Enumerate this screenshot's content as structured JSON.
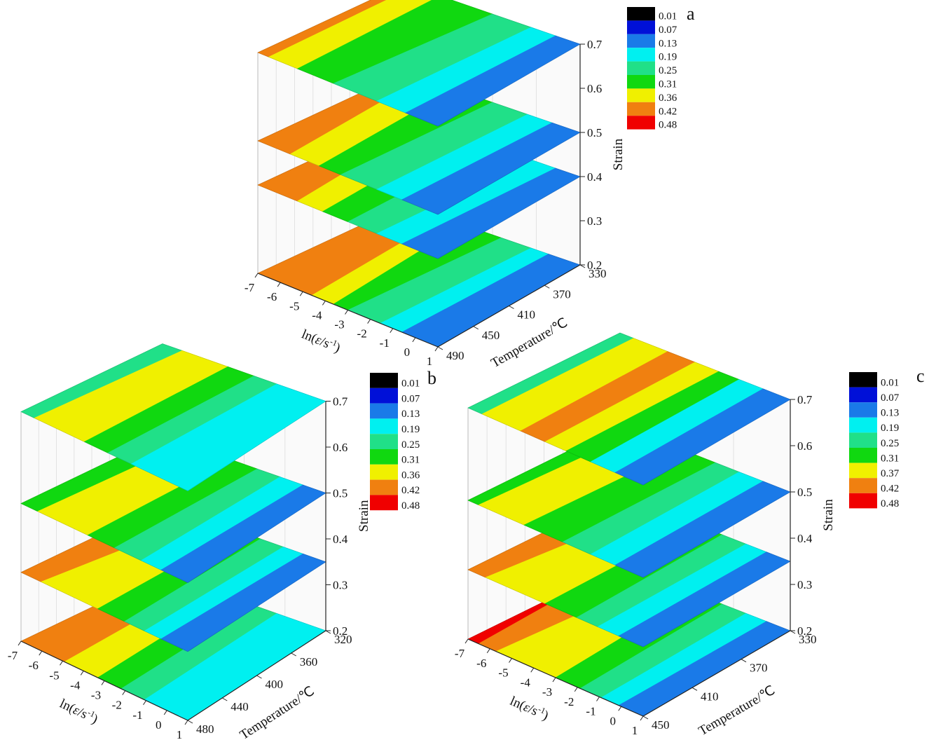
{
  "chart_data": [
    {
      "id": "a",
      "type": "contour-3d-slices",
      "panel_label": "a",
      "xlabel_prefix": "ln(",
      "xlabel_eps": "ε",
      "xlabel_suffix": "/s",
      "xlabel_sup": "-1",
      "xlabel_close": ")",
      "ylabel": "Temperature/℃",
      "zlabel": "Strain",
      "x_ticks": [
        "-7",
        "-6",
        "-5",
        "-4",
        "-3",
        "-2",
        "-1",
        "0",
        "1"
      ],
      "y_ticks": [
        "330",
        "370",
        "410",
        "450",
        "490"
      ],
      "z_ticks": [
        "0.2",
        "0.3",
        "0.4",
        "0.5",
        "0.6",
        "0.7"
      ],
      "strain_levels": [
        0.2,
        0.4,
        0.5,
        0.7
      ],
      "legend": [
        "0.01",
        "0.07",
        "0.13",
        "0.19",
        "0.25",
        "0.31",
        "0.36",
        "0.42",
        "0.48"
      ],
      "legend_colors": [
        "#000000",
        "#0010d8",
        "#1a7ae8",
        "#00f0f0",
        "#20e088",
        "#10d810",
        "#f0f000",
        "#f08010",
        "#f00000"
      ]
    },
    {
      "id": "b",
      "type": "contour-3d-slices",
      "panel_label": "b",
      "xlabel_prefix": "ln(",
      "xlabel_eps": "ε",
      "xlabel_suffix": "/s",
      "xlabel_sup": "-1",
      "xlabel_close": ")",
      "ylabel": "Temperature/℃",
      "zlabel": "Strain",
      "x_ticks": [
        "-7",
        "-6",
        "-5",
        "-4",
        "-3",
        "-2",
        "-1",
        "0",
        "1"
      ],
      "y_ticks": [
        "320",
        "360",
        "400",
        "440",
        "480"
      ],
      "z_ticks": [
        "0.2",
        "0.3",
        "0.4",
        "0.5",
        "0.6",
        "0.7"
      ],
      "strain_levels": [
        0.2,
        0.35,
        0.5,
        0.7
      ],
      "legend": [
        "0.01",
        "0.07",
        "0.13",
        "0.19",
        "0.25",
        "0.31",
        "0.36",
        "0.42",
        "0.48"
      ],
      "legend_colors": [
        "#000000",
        "#0010d8",
        "#1a7ae8",
        "#00f0f0",
        "#20e088",
        "#10d810",
        "#f0f000",
        "#f08010",
        "#f00000"
      ]
    },
    {
      "id": "c",
      "type": "contour-3d-slices",
      "panel_label": "c",
      "xlabel_prefix": "ln(",
      "xlabel_eps": "ε",
      "xlabel_suffix": "/s",
      "xlabel_sup": "-1",
      "xlabel_close": ")",
      "ylabel": "Temperature/℃",
      "zlabel": "Strain",
      "x_ticks": [
        "-7",
        "-6",
        "-5",
        "-4",
        "-3",
        "-2",
        "-1",
        "0",
        "1"
      ],
      "y_ticks": [
        "330",
        "370",
        "410",
        "450"
      ],
      "z_ticks": [
        "0.2",
        "0.3",
        "0.4",
        "0.5",
        "0.6",
        "0.7"
      ],
      "strain_levels": [
        0.2,
        0.35,
        0.5,
        0.7
      ],
      "legend": [
        "0.01",
        "0.07",
        "0.13",
        "0.19",
        "0.25",
        "0.31",
        "0.37",
        "0.42",
        "0.48"
      ],
      "legend_colors": [
        "#000000",
        "#0010d8",
        "#1a7ae8",
        "#00f0f0",
        "#20e088",
        "#10d810",
        "#f0f000",
        "#f08010",
        "#f00000"
      ]
    }
  ]
}
